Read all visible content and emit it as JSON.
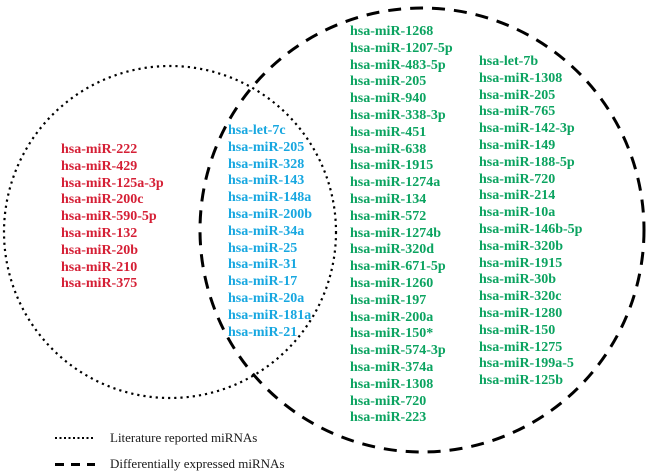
{
  "figure": {
    "type": "venn-diagram",
    "left_circle_label": "Literature reported miRNAs",
    "right_circle_label": "Differentially expressed miRNAs"
  },
  "colors": {
    "literature_color": "#d51f35",
    "overlap_color": "#17a7e0",
    "differential_color": "#0ba360",
    "outline_color": "#000000"
  },
  "lists": {
    "literature_only": [
      "hsa-miR-222",
      "hsa-miR-429",
      "hsa-miR-125a-3p",
      "hsa-miR-200c",
      "hsa-miR-590-5p",
      "hsa-miR-132",
      "hsa-miR-20b",
      "hsa-miR-210",
      "hsa-miR-375"
    ],
    "overlap": [
      "hsa-let-7c",
      "hsa-miR-205",
      "hsa-miR-328",
      "hsa-miR-143",
      "hsa-miR-148a",
      "hsa-miR-200b",
      "hsa-miR-34a",
      "hsa-miR-25",
      "hsa-miR-31",
      "hsa-miR-17",
      "hsa-miR-20a",
      "hsa-miR-181a",
      "hsa-miR-21"
    ],
    "differential_col1": [
      "hsa-miR-1268",
      "hsa-miR-1207-5p",
      "hsa-miR-483-5p",
      "hsa-miR-205",
      "hsa-miR-940",
      "hsa-miR-338-3p",
      "hsa-miR-451",
      "hsa-miR-638",
      "hsa-miR-1915",
      "hsa-miR-1274a",
      "hsa-miR-134",
      "hsa-miR-572",
      "hsa-miR-1274b",
      "hsa-miR-320d",
      "hsa-miR-671-5p",
      "hsa-miR-1260",
      "hsa-miR-197",
      "hsa-miR-200a",
      "hsa-miR-150*",
      "hsa-miR-574-3p",
      "hsa-miR-374a",
      "hsa-miR-1308",
      "hsa-miR-720",
      "hsa-miR-223"
    ],
    "differential_col2": [
      "hsa-let-7b",
      "hsa-miR-1308",
      "hsa-miR-205",
      "hsa-miR-765",
      "hsa-miR-142-3p",
      "hsa-miR-149",
      "hsa-miR-188-5p",
      "hsa-miR-720",
      "hsa-miR-214",
      "hsa-miR-10a",
      "hsa-miR-146b-5p",
      "hsa-miR-320b",
      "hsa-miR-1915",
      "hsa-miR-30b",
      "hsa-miR-320c",
      "hsa-miR-1280",
      "hsa-miR-150",
      "hsa-miR-1275",
      "hsa-miR-199a-5",
      "hsa-miR-125b"
    ]
  },
  "legend": {
    "literature": {
      "label": "Literature reported miRNAs"
    },
    "differential": {
      "label": "Differentially expressed miRNAs"
    }
  }
}
